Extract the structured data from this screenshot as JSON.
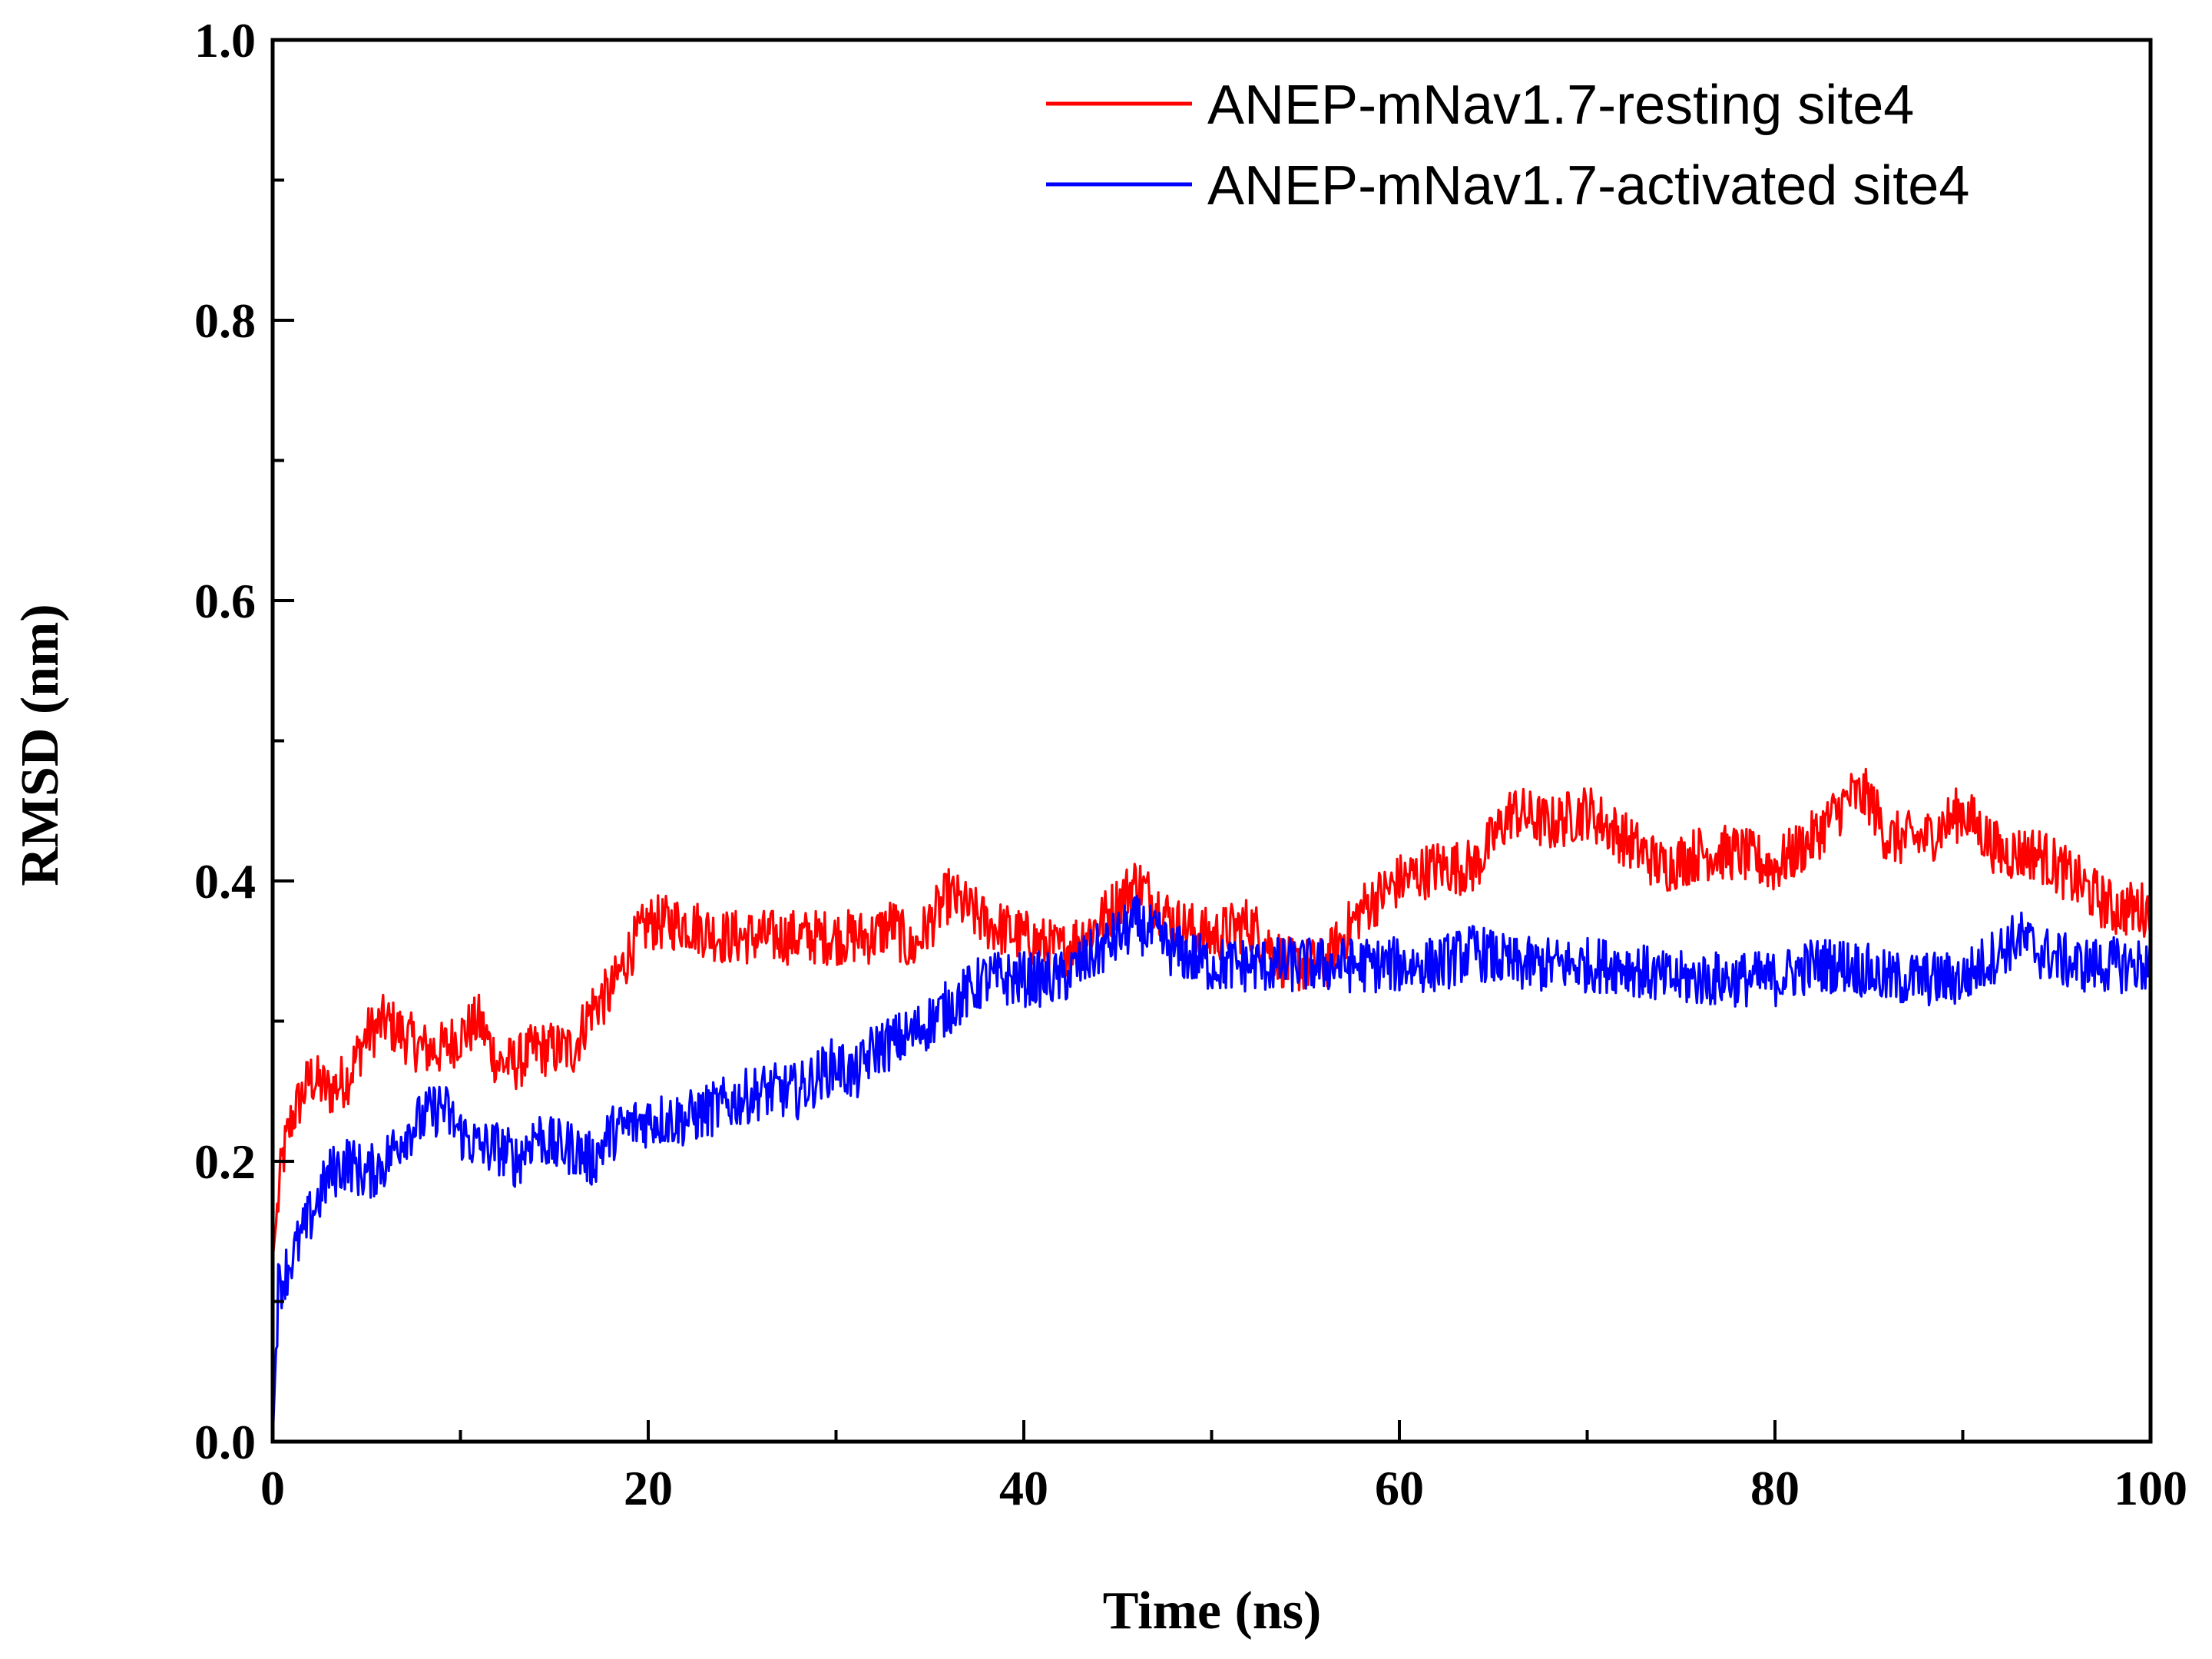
{
  "chart_data": {
    "type": "line",
    "title": "",
    "xlabel": "Time (ns)",
    "ylabel": "RMSD (nm)",
    "xlim": [
      0,
      100
    ],
    "ylim": [
      0.0,
      1.0
    ],
    "x_ticks": [
      0,
      20,
      40,
      60,
      80,
      100
    ],
    "x_tick_labels": [
      "0",
      "20",
      "40",
      "60",
      "80",
      "100"
    ],
    "y_ticks": [
      0.0,
      0.2,
      0.4,
      0.6,
      0.8,
      1.0
    ],
    "y_tick_labels": [
      "0.0",
      "0.2",
      "0.4",
      "0.6",
      "0.8",
      "1.0"
    ],
    "grid": false,
    "legend_position": "top-right",
    "series": [
      {
        "name": "ANEP-mNav1.7-resting site4",
        "color": "#ff0000",
        "x": [
          0,
          0.5,
          1,
          2,
          3,
          4,
          5,
          6,
          7,
          8,
          9,
          10,
          11,
          12,
          13,
          14,
          15,
          16,
          17,
          18,
          19,
          20,
          22,
          24,
          26,
          28,
          30,
          32,
          33,
          34,
          36,
          38,
          40,
          42,
          44,
          46,
          48,
          50,
          52,
          54,
          56,
          58,
          60,
          62,
          64,
          66,
          68,
          70,
          72,
          74,
          76,
          78,
          80,
          82,
          84,
          85,
          86,
          88,
          90,
          92,
          94,
          96,
          98,
          100
        ],
        "y": [
          0.13,
          0.2,
          0.23,
          0.26,
          0.25,
          0.26,
          0.29,
          0.3,
          0.29,
          0.28,
          0.28,
          0.29,
          0.3,
          0.27,
          0.27,
          0.28,
          0.28,
          0.28,
          0.31,
          0.32,
          0.35,
          0.37,
          0.37,
          0.36,
          0.36,
          0.36,
          0.36,
          0.36,
          0.37,
          0.35,
          0.39,
          0.37,
          0.36,
          0.35,
          0.37,
          0.4,
          0.37,
          0.36,
          0.37,
          0.34,
          0.34,
          0.38,
          0.4,
          0.41,
          0.41,
          0.45,
          0.44,
          0.45,
          0.43,
          0.41,
          0.42,
          0.42,
          0.41,
          0.43,
          0.46,
          0.46,
          0.43,
          0.43,
          0.45,
          0.42,
          0.42,
          0.4,
          0.38,
          0.38
        ]
      },
      {
        "name": "ANEP-mNav1.7-activated site4",
        "color": "#0000ff",
        "x": [
          0,
          0.3,
          1,
          2,
          3,
          4,
          5,
          6,
          7,
          8,
          9,
          10,
          11,
          12,
          13,
          14,
          15,
          16,
          17,
          18,
          20,
          22,
          24,
          26,
          28,
          30,
          31,
          32,
          34,
          36,
          38,
          40,
          42,
          44,
          45,
          46,
          48,
          50,
          52,
          54,
          56,
          58,
          60,
          62,
          64,
          66,
          68,
          70,
          72,
          74,
          76,
          78,
          80,
          82,
          84,
          86,
          88,
          90,
          92,
          93,
          94,
          96,
          98,
          100
        ],
        "y": [
          0.0,
          0.11,
          0.13,
          0.16,
          0.19,
          0.2,
          0.19,
          0.2,
          0.22,
          0.23,
          0.24,
          0.22,
          0.21,
          0.21,
          0.2,
          0.22,
          0.21,
          0.21,
          0.2,
          0.22,
          0.23,
          0.23,
          0.24,
          0.25,
          0.25,
          0.27,
          0.26,
          0.28,
          0.29,
          0.31,
          0.33,
          0.33,
          0.33,
          0.35,
          0.36,
          0.37,
          0.35,
          0.34,
          0.34,
          0.34,
          0.34,
          0.34,
          0.34,
          0.34,
          0.35,
          0.34,
          0.34,
          0.34,
          0.34,
          0.33,
          0.33,
          0.33,
          0.33,
          0.34,
          0.34,
          0.33,
          0.33,
          0.33,
          0.35,
          0.36,
          0.35,
          0.34,
          0.34,
          0.34
        ]
      }
    ]
  }
}
